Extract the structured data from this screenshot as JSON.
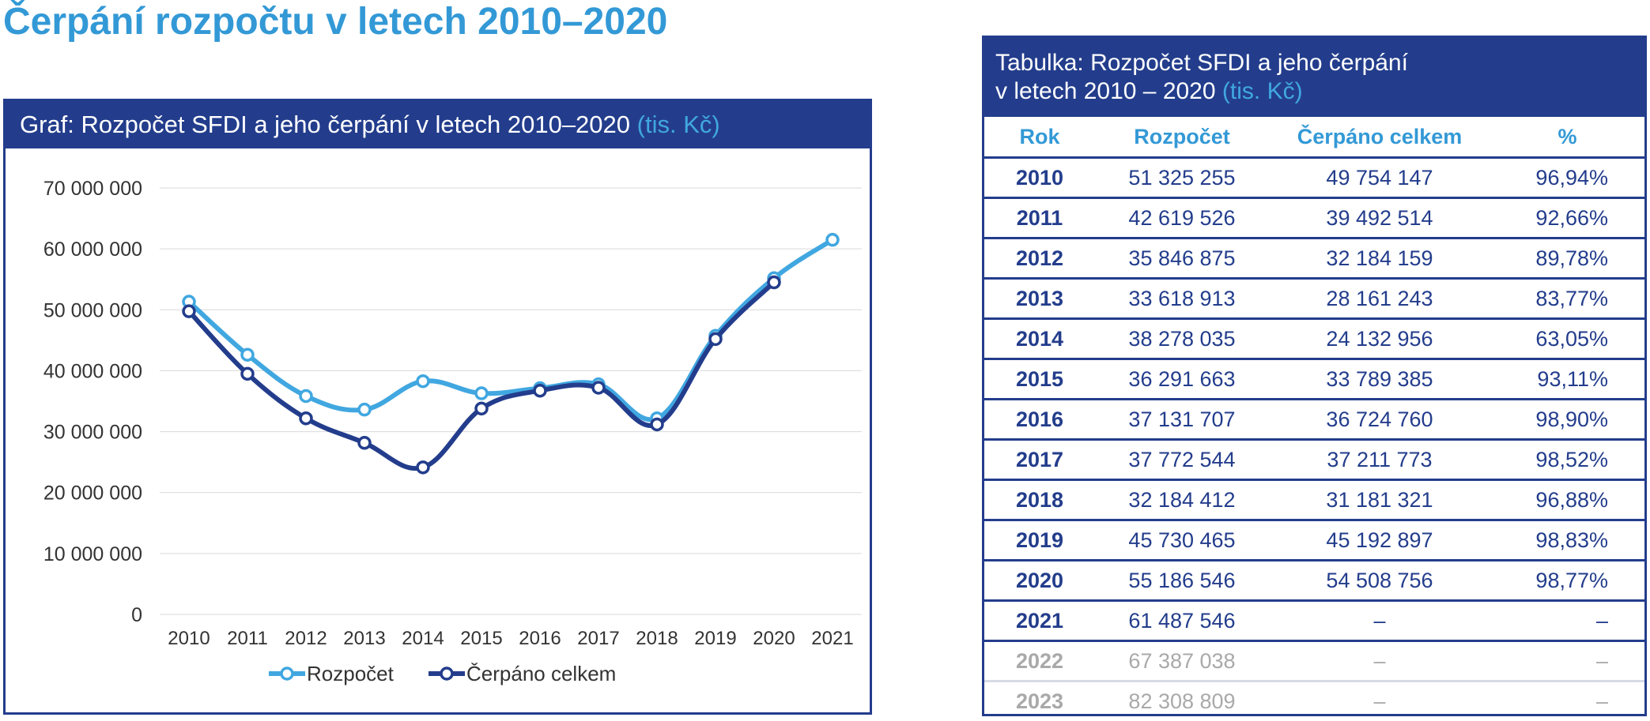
{
  "page_title": "Čerpání rozpočtu v letech 2010–2020",
  "chart_panel": {
    "title": "Graf: Rozpočet SFDI a jeho čerpání v letech 2010–2020",
    "unit": "(tis. Kč)"
  },
  "table_panel": {
    "title_line1": "Tabulka: Rozpočet SFDI a jeho čerpání",
    "title_line2": "v letech 2010 – 2020",
    "unit": "(tis. Kč)",
    "columns": [
      "Rok",
      "Rozpočet",
      "Čerpáno celkem",
      "%"
    ],
    "rows": [
      {
        "year": "2010",
        "budget": "51 325 255",
        "spent": "49 754 147",
        "pct": "96,94%"
      },
      {
        "year": "2011",
        "budget": "42 619 526",
        "spent": "39 492 514",
        "pct": "92,66%"
      },
      {
        "year": "2012",
        "budget": "35 846 875",
        "spent": "32 184 159",
        "pct": "89,78%"
      },
      {
        "year": "2013",
        "budget": "33 618 913",
        "spent": "28 161 243",
        "pct": "83,77%"
      },
      {
        "year": "2014",
        "budget": "38 278 035",
        "spent": "24 132 956",
        "pct": "63,05%"
      },
      {
        "year": "2015",
        "budget": "36 291 663",
        "spent": "33 789 385",
        "pct": "93,11%"
      },
      {
        "year": "2016",
        "budget": "37 131 707",
        "spent": "36 724 760",
        "pct": "98,90%"
      },
      {
        "year": "2017",
        "budget": "37 772 544",
        "spent": "37 211 773",
        "pct": "98,52%"
      },
      {
        "year": "2018",
        "budget": "32 184 412",
        "spent": "31 181 321",
        "pct": "96,88%"
      },
      {
        "year": "2019",
        "budget": "45 730 465",
        "spent": "45 192 897",
        "pct": "98,83%"
      },
      {
        "year": "2020",
        "budget": "55 186 546",
        "spent": "54 508 756",
        "pct": "98,77%"
      },
      {
        "year": "2021",
        "budget": "61 487 546",
        "spent": "–",
        "pct": "–"
      },
      {
        "year": "2022",
        "budget": "67 387 038",
        "spent": "–",
        "pct": "–",
        "dim": true
      },
      {
        "year": "2023",
        "budget": "82 308 809",
        "spent": "–",
        "pct": "–",
        "dim": true
      }
    ]
  },
  "chart_data": {
    "type": "line",
    "title": "Graf: Rozpočet SFDI a jeho čerpání v letech 2010–2020",
    "x": [
      "2010",
      "2011",
      "2012",
      "2013",
      "2014",
      "2015",
      "2016",
      "2017",
      "2018",
      "2019",
      "2020",
      "2021"
    ],
    "ylim": [
      0,
      70000000
    ],
    "yticks": [
      0,
      10000000,
      20000000,
      30000000,
      40000000,
      50000000,
      60000000,
      70000000
    ],
    "ytick_labels": [
      "0",
      "10 000 000",
      "20 000 000",
      "30 000 000",
      "40 000 000",
      "50 000 000",
      "60 000 000",
      "70 000 000"
    ],
    "grid": true,
    "legend_position": "bottom",
    "series": [
      {
        "name": "Rozpočet",
        "color": "#41a7e0",
        "values": [
          51325255,
          42619526,
          35846875,
          33618913,
          38278035,
          36291663,
          37131707,
          37772544,
          32184412,
          45730465,
          55186546,
          61487546
        ]
      },
      {
        "name": "Čerpáno celkem",
        "color": "#233d8c",
        "values": [
          49754147,
          39492514,
          32184159,
          28161243,
          24132956,
          33789385,
          36724760,
          37211773,
          31181321,
          45192897,
          54508756,
          null
        ]
      }
    ]
  },
  "colors": {
    "title_blue": "#3399d6",
    "navy": "#233d8c",
    "light_blue": "#41a7e0",
    "dim_gray": "#a9a9a9"
  }
}
